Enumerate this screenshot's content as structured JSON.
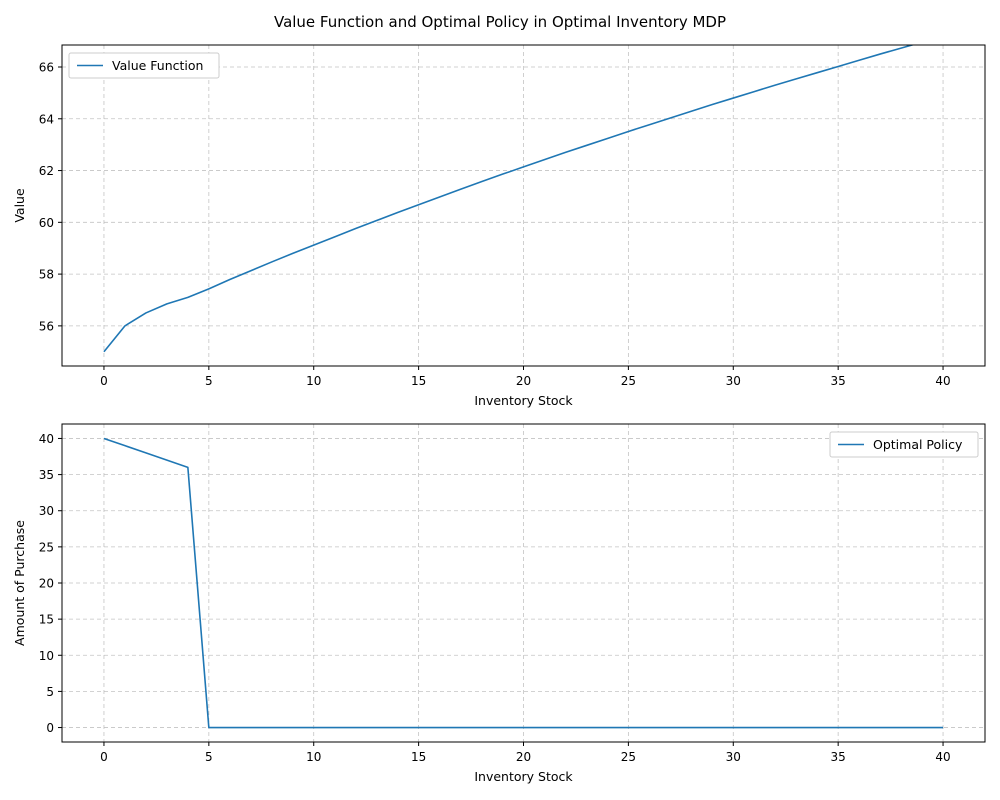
{
  "title": "Value Function and Optimal Policy in Optimal Inventory MDP",
  "chart_data": [
    {
      "type": "line",
      "title": "",
      "xlabel": "Inventory Stock",
      "ylabel": "Value",
      "xlim": [
        -2,
        42
      ],
      "ylim": [
        54.45,
        66.85
      ],
      "xticks": [
        0,
        5,
        10,
        15,
        20,
        25,
        30,
        35,
        40
      ],
      "yticks": [
        56,
        58,
        60,
        62,
        64,
        66
      ],
      "grid": true,
      "legend": "upper-left",
      "series": [
        {
          "name": "Value Function",
          "color": "#1f77b4",
          "x": [
            0,
            1,
            2,
            3,
            4,
            5,
            6,
            7,
            8,
            9,
            10,
            11,
            12,
            13,
            14,
            15,
            16,
            17,
            18,
            19,
            20,
            21,
            22,
            23,
            24,
            25,
            26,
            27,
            28,
            29,
            30,
            31,
            32,
            33,
            34,
            35,
            36,
            37,
            38,
            39,
            40
          ],
          "y": [
            55.0,
            56.0,
            56.5,
            56.85,
            57.1,
            57.43,
            57.79,
            58.13,
            58.47,
            58.8,
            59.12,
            59.44,
            59.76,
            60.07,
            60.38,
            60.68,
            60.98,
            61.28,
            61.57,
            61.86,
            62.14,
            62.42,
            62.7,
            62.97,
            63.24,
            63.51,
            63.77,
            64.03,
            64.29,
            64.55,
            64.8,
            65.05,
            65.3,
            65.54,
            65.78,
            66.02,
            66.26,
            66.5,
            66.73,
            66.96,
            67.19
          ]
        }
      ]
    },
    {
      "type": "line",
      "title": "",
      "xlabel": "Inventory Stock",
      "ylabel": "Amount of Purchase",
      "xlim": [
        -2,
        42
      ],
      "ylim": [
        -2,
        42
      ],
      "xticks": [
        0,
        5,
        10,
        15,
        20,
        25,
        30,
        35,
        40
      ],
      "yticks": [
        0,
        5,
        10,
        15,
        20,
        25,
        30,
        35,
        40
      ],
      "grid": true,
      "legend": "upper-right",
      "series": [
        {
          "name": "Optimal Policy",
          "color": "#1f77b4",
          "x": [
            0,
            1,
            2,
            3,
            4,
            5,
            6,
            7,
            8,
            9,
            10,
            11,
            12,
            13,
            14,
            15,
            16,
            17,
            18,
            19,
            20,
            21,
            22,
            23,
            24,
            25,
            26,
            27,
            28,
            29,
            30,
            31,
            32,
            33,
            34,
            35,
            36,
            37,
            38,
            39,
            40
          ],
          "y": [
            40,
            39,
            38,
            37,
            36,
            0,
            0,
            0,
            0,
            0,
            0,
            0,
            0,
            0,
            0,
            0,
            0,
            0,
            0,
            0,
            0,
            0,
            0,
            0,
            0,
            0,
            0,
            0,
            0,
            0,
            0,
            0,
            0,
            0,
            0,
            0,
            0,
            0,
            0,
            0,
            0
          ]
        }
      ]
    }
  ]
}
